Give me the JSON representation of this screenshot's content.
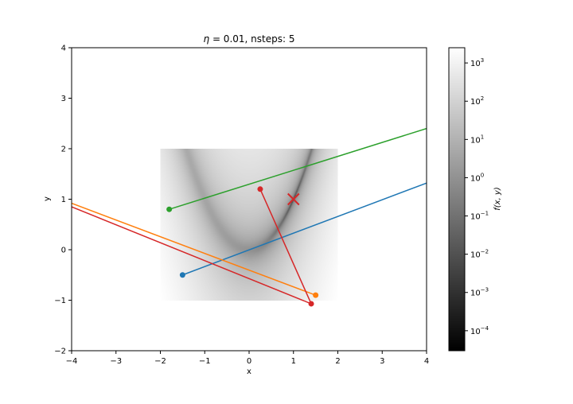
{
  "chart_data": {
    "type": "line",
    "title_prefix": "η",
    "title_rest": " = 0.01, nsteps: 5",
    "xlabel": "x",
    "ylabel": "y",
    "xlim": [
      -4,
      4
    ],
    "ylim": [
      -2,
      4
    ],
    "xticks": [
      -4,
      -3,
      -2,
      -1,
      0,
      1,
      2,
      3,
      4
    ],
    "yticks": [
      -2,
      -1,
      0,
      1,
      2,
      3,
      4
    ],
    "background": {
      "kind": "heatmap",
      "function": "rosenbrock f(x, y) = (1 - x)^2 + 100 (y - x^2)^2",
      "x_range": [
        -2,
        2
      ],
      "y_range": [
        -1,
        2
      ],
      "scale": "log",
      "colormap": "gray"
    },
    "colorbar": {
      "label": "f(x, y)",
      "scale": "log",
      "ticks": [
        {
          "base": "10",
          "exp": "3",
          "value": 1000
        },
        {
          "base": "10",
          "exp": "2",
          "value": 100
        },
        {
          "base": "10",
          "exp": "1",
          "value": 10
        },
        {
          "base": "10",
          "exp": "0",
          "value": 1
        },
        {
          "base": "10",
          "exp": "−1",
          "value": 0.1
        },
        {
          "base": "10",
          "exp": "−2",
          "value": 0.01
        },
        {
          "base": "10",
          "exp": "−3",
          "value": 0.001
        },
        {
          "base": "10",
          "exp": "−4",
          "value": 0.0001
        }
      ],
      "range": [
        3e-05,
        2500
      ]
    },
    "minimum_marker": {
      "x": 1,
      "y": 1,
      "color": "#d62728",
      "symbol": "x"
    },
    "series": [
      {
        "color": "#1f77b4",
        "points": [
          [
            -1.5,
            -0.5
          ],
          [
            4.0,
            1.32
          ]
        ]
      },
      {
        "color": "#ff7f0e",
        "points": [
          [
            1.5,
            -0.9
          ],
          [
            -4.0,
            0.92
          ]
        ]
      },
      {
        "color": "#2ca02c",
        "points": [
          [
            -1.8,
            0.8
          ],
          [
            4.0,
            2.4
          ]
        ]
      },
      {
        "color": "#d62728",
        "points": [
          [
            0.25,
            1.2
          ],
          [
            1.4,
            -1.07
          ],
          [
            -4.0,
            0.85
          ]
        ]
      }
    ]
  }
}
